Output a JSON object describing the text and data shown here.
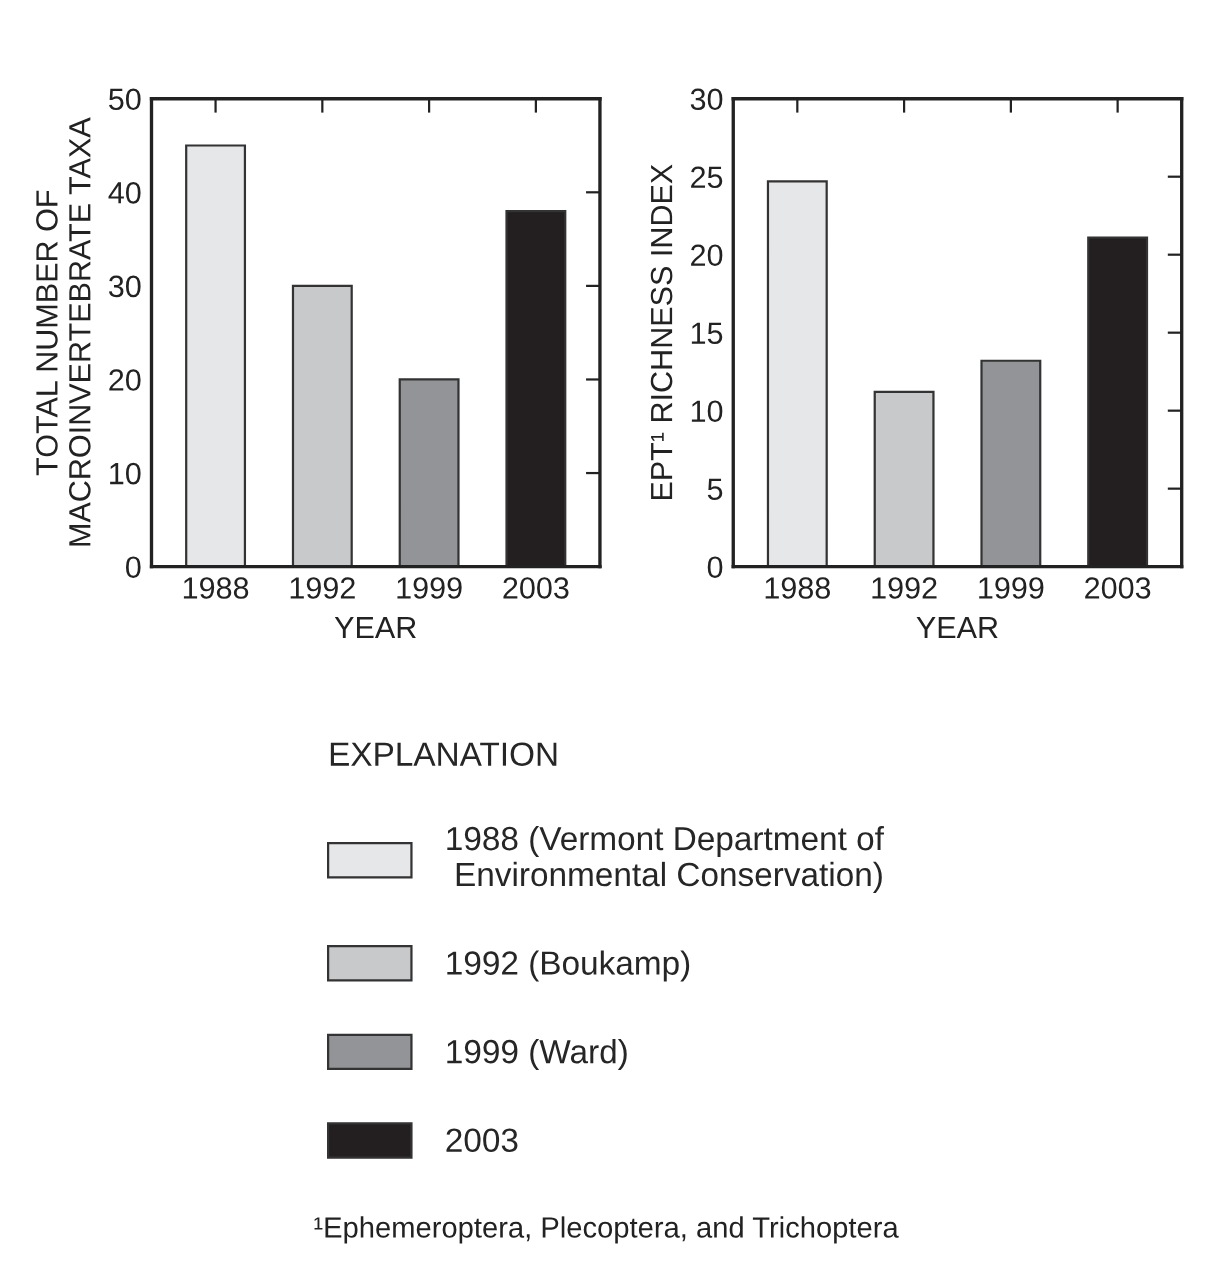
{
  "chart_data": [
    {
      "type": "bar",
      "categories": [
        "1988",
        "1992",
        "1999",
        "2003"
      ],
      "xlabel": "YEAR",
      "ylabel": "TOTAL NUMBER OF\nMACROINVERTEBRATE TAXA",
      "ylim": [
        0,
        50
      ],
      "yticks": [
        0,
        10,
        20,
        30,
        40,
        50
      ],
      "legend": "bottom",
      "legend_title": "EXPLANATION",
      "series": [
        {
          "name": "1988 (Vermont Department of\n Environmental Conservation)",
          "color": "#e6e7e8",
          "values": [
            45,
            null,
            null,
            null
          ]
        },
        {
          "name": "1992 (Boukamp)",
          "color": "#c8c9cb",
          "values": [
            null,
            30,
            null,
            null
          ]
        },
        {
          "name": "1999 (Ward)",
          "color": "#929497",
          "values": [
            null,
            null,
            20,
            null
          ]
        },
        {
          "name": "2003",
          "color": "#231f20",
          "values": [
            null,
            null,
            null,
            38
          ]
        }
      ]
    },
    {
      "type": "bar",
      "categories": [
        "1988",
        "1992",
        "1999",
        "2003"
      ],
      "xlabel": "YEAR",
      "ylabel": "EPT¹ RICHNESS INDEX",
      "ylim": [
        0,
        30
      ],
      "yticks": [
        0,
        5,
        10,
        15,
        20,
        25,
        30
      ],
      "annotations": [
        "¹Ephemeroptera, Plecoptera, and Trichoptera"
      ],
      "series": [
        {
          "color": "#e6e7e8",
          "values": [
            24.7,
            null,
            null,
            null
          ]
        },
        {
          "color": "#c8c9cb",
          "values": [
            null,
            11.2,
            null,
            null
          ]
        },
        {
          "color": "#929497",
          "values": [
            null,
            null,
            13.2,
            null
          ]
        },
        {
          "color": "#231f20",
          "values": [
            null,
            null,
            null,
            21.1
          ]
        }
      ]
    }
  ]
}
